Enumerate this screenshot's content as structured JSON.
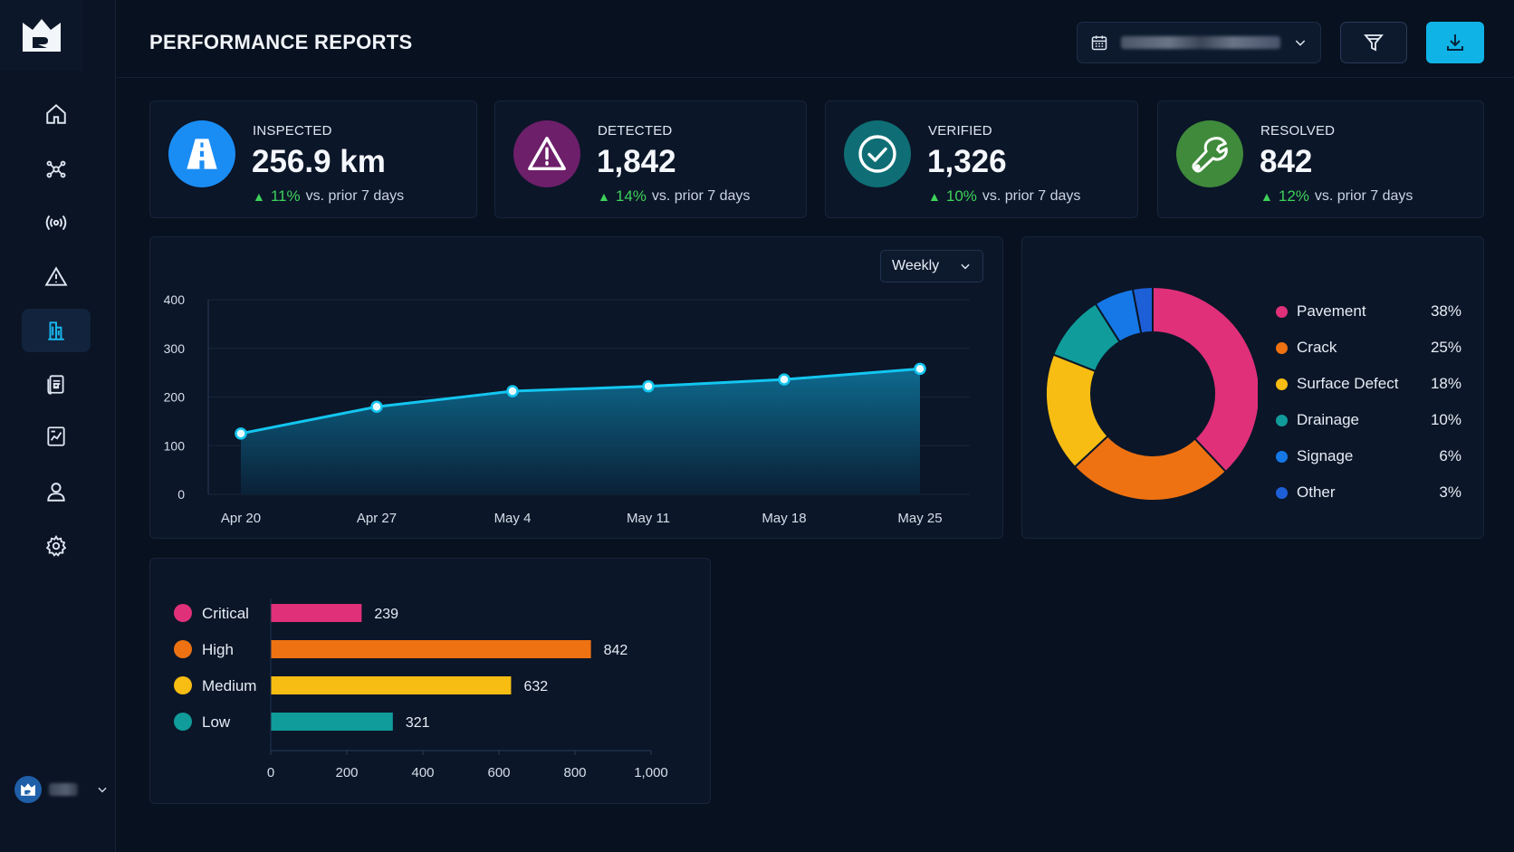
{
  "header": {
    "title": "PERFORMANCE REPORTS",
    "filter_icon": "filter-icon",
    "download_icon": "download-icon",
    "calendar_icon": "calendar-icon"
  },
  "sidebar": {
    "items": [
      {
        "icon": "home-icon",
        "active": false
      },
      {
        "icon": "network-icon",
        "active": false
      },
      {
        "icon": "broadcast-icon",
        "active": false
      },
      {
        "icon": "warning-icon",
        "active": false
      },
      {
        "icon": "reports-icon",
        "active": true
      },
      {
        "icon": "documents-icon",
        "active": false
      },
      {
        "icon": "analytics-icon",
        "active": false
      },
      {
        "icon": "user-icon",
        "active": false
      },
      {
        "icon": "settings-icon",
        "active": false
      }
    ]
  },
  "kpis": [
    {
      "label": "INSPECTED",
      "value": "256.9 km",
      "delta": "11%",
      "delta_text": "vs. prior 7 days",
      "color": "#1a8df5",
      "icon": "road-icon"
    },
    {
      "label": "DETECTED",
      "value": "1,842",
      "delta": "14%",
      "delta_text": "vs. prior 7 days",
      "color": "#6d1f6a",
      "icon": "alert-icon"
    },
    {
      "label": "VERIFIED",
      "value": "1,326",
      "delta": "10%",
      "delta_text": "vs. prior 7 days",
      "color": "#0f6e75",
      "icon": "check-circle-icon"
    },
    {
      "label": "RESOLVED",
      "value": "842",
      "delta": "12%",
      "delta_text": "vs. prior 7 days",
      "color": "#3f8a3b",
      "icon": "wrench-icon"
    }
  ],
  "colors": {
    "accent": "#0fb3e6",
    "up": "#3ed15a"
  },
  "chart_data": [
    {
      "type": "area",
      "x": [
        "Apr 20",
        "Apr 27",
        "May 4",
        "May 11",
        "May 18",
        "May 25"
      ],
      "values": [
        125,
        180,
        212,
        222,
        236,
        258
      ],
      "ylim": [
        0,
        400
      ],
      "yticks": [
        0,
        100,
        200,
        300,
        400
      ],
      "control": "Weekly",
      "grid": true,
      "color": "#13c6f0"
    },
    {
      "type": "pie",
      "donut": true,
      "labels": [
        "Pavement",
        "Crack",
        "Surface Defect",
        "Drainage",
        "Signage",
        "Other"
      ],
      "percents": [
        "38%",
        "25%",
        "18%",
        "10%",
        "6%",
        "3%"
      ],
      "values": [
        38,
        25,
        18,
        10,
        6,
        3
      ],
      "colors": [
        "#e0307a",
        "#ee7212",
        "#f7bd12",
        "#109c9a",
        "#1578e6",
        "#1d5fd6"
      ],
      "legend": "right"
    },
    {
      "type": "bar",
      "orientation": "horizontal",
      "categories": [
        "Critical",
        "High",
        "Medium",
        "Low"
      ],
      "values": [
        239,
        842,
        632,
        321
      ],
      "colors": [
        "#e0307a",
        "#ee7212",
        "#f7bd12",
        "#109c9a"
      ],
      "xlim": [
        0,
        1000
      ],
      "xticks": [
        "0",
        "200",
        "400",
        "600",
        "800",
        "1,000"
      ]
    }
  ]
}
